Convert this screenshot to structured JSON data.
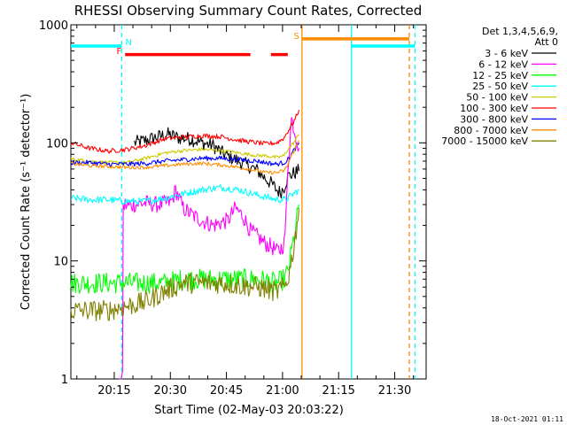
{
  "chart_data": {
    "type": "line",
    "title": "RHESSI Observing Summary Count Rates, Corrected",
    "xlabel": "Start Time (02-May-03 20:03:22)",
    "ylabel": "Corrected Count Rate (s⁻¹ detector⁻¹)",
    "yscale": "log",
    "ylim": [
      1,
      1000
    ],
    "xlim_minutes_after_start": [
      0,
      95
    ],
    "x_tick_labels": [
      {
        "label": "20:15",
        "minute": 11.6
      },
      {
        "label": "20:30",
        "minute": 26.6
      },
      {
        "label": "20:45",
        "minute": 41.6
      },
      {
        "label": "21:00",
        "minute": 56.6
      },
      {
        "label": "21:15",
        "minute": 71.6
      },
      {
        "label": "21:30",
        "minute": 86.6
      }
    ],
    "y_tick_labels": [
      {
        "label": "1",
        "value": 1
      },
      {
        "label": "10",
        "value": 10
      },
      {
        "label": "100",
        "value": 100
      },
      {
        "label": "1000",
        "value": 1000
      }
    ],
    "legend": {
      "placement": "right",
      "header": [
        "Det 1,3,4,5,6,9,",
        "Att 0"
      ],
      "entries": [
        {
          "name": "3 - 6 keV",
          "color": "#000000"
        },
        {
          "name": "6 - 12 keV",
          "color": "#ff00ff"
        },
        {
          "name": "12 - 25 keV",
          "color": "#00ff00"
        },
        {
          "name": "25 - 50 keV",
          "color": "#00ffff"
        },
        {
          "name": "50 - 100 keV",
          "color": "#cccc00"
        },
        {
          "name": "100 - 300 keV",
          "color": "#ff0000"
        },
        {
          "name": "300 - 800 keV",
          "color": "#0000ff"
        },
        {
          "name": "800 - 7000 keV",
          "color": "#ff8c00"
        },
        {
          "name": "7000 - 15000 keV",
          "color": "#808000"
        }
      ]
    },
    "series": [
      {
        "name": "3 - 6 keV",
        "color": "#000000",
        "x": [
          17,
          20,
          23,
          26,
          29,
          32,
          35,
          38,
          41,
          44,
          47,
          50,
          52,
          54,
          55,
          56,
          57,
          58,
          60,
          61
        ],
        "y": [
          100,
          105,
          112,
          118,
          110,
          108,
          100,
          95,
          80,
          72,
          65,
          58,
          50,
          44,
          40,
          38,
          42,
          52,
          56,
          58
        ]
      },
      {
        "name": "6 - 12 keV",
        "color": "#ff00ff",
        "x": [
          13,
          13.8,
          14,
          14.5,
          15,
          17,
          20,
          23,
          26,
          27,
          28,
          30,
          32,
          35,
          38,
          40,
          42,
          44,
          46,
          48,
          50,
          52,
          54,
          55,
          56,
          57,
          57.5,
          58,
          59,
          60,
          61
        ],
        "y": [
          1,
          1,
          28,
          30,
          29,
          30,
          31,
          30,
          31,
          32,
          40,
          28,
          25,
          22,
          20,
          21,
          22,
          28,
          24,
          18,
          16,
          14,
          13,
          12,
          12.5,
          14,
          22,
          60,
          160,
          120,
          90
        ]
      },
      {
        "name": "12 - 25 keV",
        "color": "#00ff00",
        "x": [
          0,
          10,
          20,
          25,
          30,
          35,
          40,
          45,
          50,
          55,
          57,
          58,
          59,
          60,
          61
        ],
        "y": [
          6.5,
          6.5,
          6.5,
          6.5,
          7,
          7,
          7,
          7,
          7,
          6.5,
          7,
          8,
          12,
          18,
          30
        ]
      },
      {
        "name": "25 - 50 keV",
        "color": "#00ffff",
        "x": [
          0,
          5,
          10,
          15,
          20,
          25,
          30,
          35,
          40,
          45,
          50,
          55,
          57,
          58,
          59,
          60,
          61
        ],
        "y": [
          34,
          33,
          33,
          32,
          32,
          34,
          37,
          40,
          42,
          40,
          36,
          33,
          33,
          34,
          36,
          38,
          40
        ]
      },
      {
        "name": "50 - 100 keV",
        "color": "#cccc00",
        "x": [
          0,
          5,
          10,
          15,
          20,
          25,
          30,
          35,
          40,
          45,
          50,
          52,
          55,
          57,
          58,
          59,
          60,
          61
        ],
        "y": [
          73,
          70,
          68,
          68,
          74,
          82,
          86,
          88,
          86,
          82,
          78,
          78,
          75,
          78,
          88,
          95,
          105,
          118
        ]
      },
      {
        "name": "100 - 300 keV",
        "color": "#ff0000",
        "x": [
          0,
          5,
          10,
          15,
          20,
          25,
          30,
          35,
          40,
          45,
          50,
          52,
          55,
          57,
          58,
          59,
          60,
          61
        ],
        "y": [
          100,
          90,
          85,
          88,
          95,
          108,
          112,
          115,
          113,
          105,
          100,
          98,
          100,
          110,
          125,
          140,
          160,
          190
        ]
      },
      {
        "name": "300 - 800 keV",
        "color": "#0000ff",
        "x": [
          0,
          5,
          10,
          15,
          20,
          25,
          30,
          35,
          40,
          45,
          50,
          52,
          55,
          57,
          58,
          59,
          60,
          61
        ],
        "y": [
          68,
          68,
          66,
          66,
          67,
          70,
          72,
          74,
          74,
          72,
          70,
          68,
          66,
          68,
          72,
          80,
          90,
          100
        ]
      },
      {
        "name": "800 - 7000 keV",
        "color": "#ff8c00",
        "x": [
          0,
          5,
          10,
          15,
          20,
          25,
          30,
          35,
          40,
          45,
          50,
          52,
          55,
          57,
          58,
          59,
          60,
          61
        ],
        "y": [
          67,
          64,
          63,
          62,
          62,
          64,
          66,
          67,
          65,
          62,
          58,
          56,
          56,
          58,
          65,
          78,
          90,
          105
        ]
      },
      {
        "name": "7000 - 15000 keV",
        "color": "#808000",
        "x": [
          0,
          10,
          20,
          25,
          30,
          35,
          40,
          45,
          50,
          55,
          57,
          58,
          59,
          60,
          61
        ],
        "y": [
          3.8,
          3.8,
          4.5,
          5.5,
          6.5,
          6.5,
          6.5,
          6.2,
          6,
          5.5,
          6,
          7,
          10,
          16,
          28
        ]
      }
    ],
    "annotations": [
      {
        "label": "N",
        "color": "#00ffff",
        "x_minute": 13.6
      },
      {
        "label": "F",
        "color": "#ff0000",
        "x_minute": 14.5
      },
      {
        "label": "S",
        "color": "#ff8c00",
        "x_minute": 61.8
      }
    ],
    "flag_bars": [
      {
        "name": "night",
        "color": "#00ffff",
        "y": 660,
        "ranges": [
          [
            0,
            13.6
          ],
          [
            75,
            92
          ]
        ]
      },
      {
        "name": "flare",
        "color": "#ff0000",
        "y": 560,
        "ranges": [
          [
            14.5,
            48
          ],
          [
            53.5,
            58
          ]
        ]
      },
      {
        "name": "saa",
        "color": "#ff8c00",
        "y": 760,
        "ranges": [
          [
            61.8,
            90.5
          ]
        ]
      }
    ],
    "vertical_markers": [
      {
        "color": "#00ffff",
        "style": "dashed",
        "x_minute": 13.6
      },
      {
        "color": "#ff8c00",
        "style": "solid",
        "x_minute": 61.8
      },
      {
        "color": "#00ffff",
        "style": "solid",
        "x_minute": 75
      },
      {
        "color": "#ff8c00",
        "style": "dashed",
        "x_minute": 90.5
      },
      {
        "color": "#00ffff",
        "style": "dashed",
        "x_minute": 92
      }
    ],
    "footer_timestamp": "18-Oct-2021 01:11"
  }
}
